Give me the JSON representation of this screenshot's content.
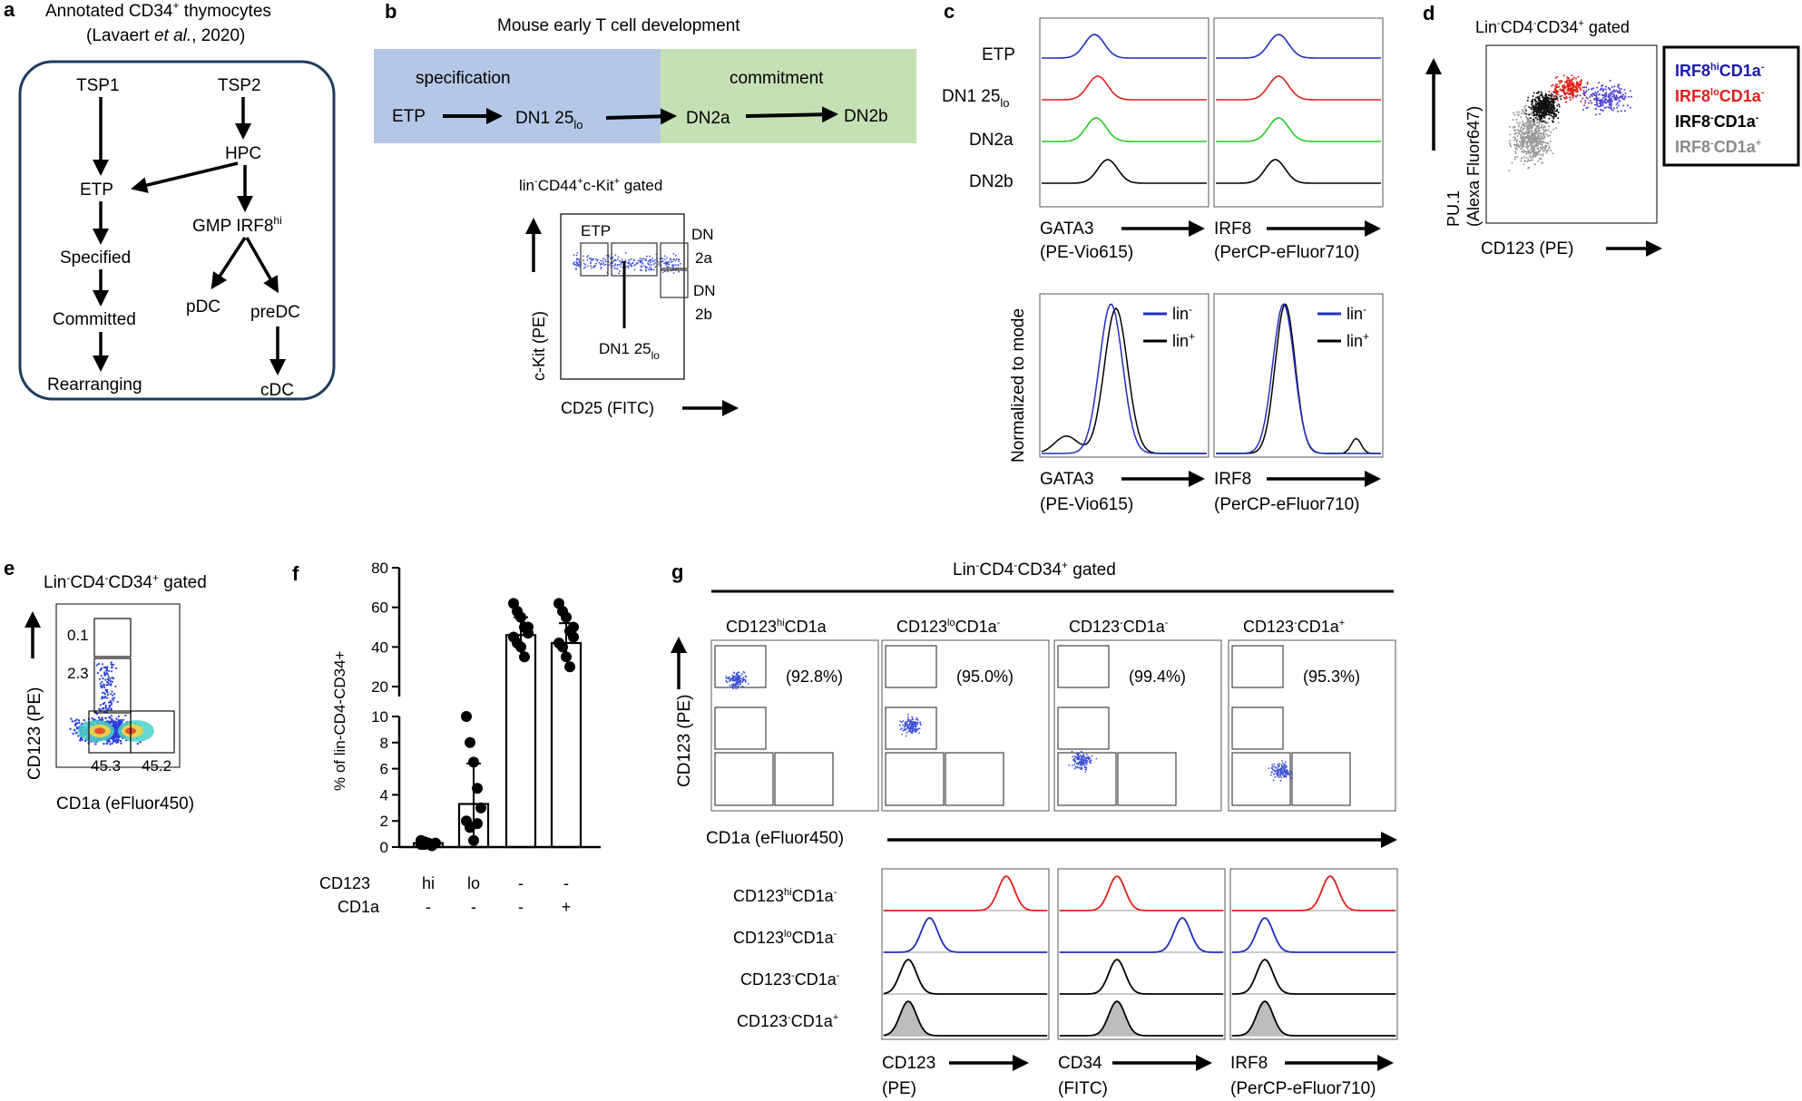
{
  "panel_labels": {
    "a": "a",
    "b": "b",
    "c": "c",
    "d": "d",
    "e": "e",
    "f": "f",
    "g": "g"
  },
  "panel_a": {
    "title_line1": "Annotated  CD34",
    "title_sup": "+",
    "title_line1_end": " thymocytes",
    "citation_pre": "(Lavaert ",
    "citation_italic": "et al.",
    "citation_post": ", 2020)",
    "nodes": {
      "tsp1": "TSP1",
      "tsp2": "TSP2",
      "hpc": "HPC",
      "etp": "ETP",
      "gmp": "GMP IRF8",
      "gmp_sup": "hi",
      "specified": "Specified",
      "committed": "Committed",
      "rearranging": "Rearranging",
      "pdc": "pDC",
      "predc": "preDC",
      "cdc": "cDC"
    }
  },
  "panel_b": {
    "title": "Mouse early T cell development",
    "spec_label": "specification",
    "commit_label": "commitment",
    "stage_etp": "ETP",
    "stage_dn1": "DN1 25",
    "stage_dn1_sub": "lo",
    "stage_dn2a": "DN2a",
    "stage_dn2b": "DN2b",
    "gate_pre": "lin",
    "gate_sup1": "-",
    "gate_mid": "CD44",
    "gate_sup2": "+",
    "gate_mid2": "c-Kit",
    "gate_sup3": "+",
    "gate_post": " gated",
    "gate_etp": "ETP",
    "gate_dn": "DN",
    "gate_2a": "2a",
    "gate_dn2": "DN",
    "gate_2b": "2b",
    "gate_dn1": "DN1 25",
    "gate_dn1_sub": "lo",
    "yaxis": "c-Kit (PE)",
    "xaxis": "CD25 (FITC)"
  },
  "panel_c": {
    "rows": [
      "ETP",
      "DN1 25",
      "DN2a",
      "DN2b"
    ],
    "row_sub": "lo",
    "colors": [
      "#1f2fbf",
      "#e0201b",
      "#22cc22",
      "#000000"
    ],
    "x_gata3": "GATA3",
    "x_gata3_sub": "(PE-Vio615)",
    "x_irf8": "IRF8",
    "x_irf8_sub": "(PerCP-eFluor710)",
    "ylabel": "Normalized to mode",
    "legend_lin_neg": "lin",
    "legend_lin_pos": "lin",
    "sup_neg": "-",
    "sup_pos": "+"
  },
  "panel_d": {
    "gate_a": "Lin",
    "gate_b": "CD4",
    "gate_c": "CD34",
    "gate_end": " gated",
    "ylabel1": "PU.1",
    "ylabel2": "(Alexa Fluor647)",
    "xlabel": "CD123 (PE)",
    "legend": [
      {
        "pre": "IRF8",
        "sup": "hi",
        "post": "CD1a",
        "sup2": "-",
        "color": "#1a1aa8"
      },
      {
        "pre": "IRF8",
        "sup": "lo",
        "post": "CD1a",
        "sup2": "-",
        "color": "#e0201b"
      },
      {
        "pre": "IRF8",
        "sup": "-",
        "post": "CD1a",
        "sup2": "-",
        "color": "#000000"
      },
      {
        "pre": "IRF8",
        "sup": "-",
        "post": "CD1a",
        "sup2": "+",
        "color": "#8a8a8a"
      }
    ]
  },
  "panel_e": {
    "gate_a": "Lin",
    "gate_b": "CD4",
    "gate_c": "CD34",
    "gate_end": " gated",
    "ylabel": "CD123 (PE)",
    "xlabel": "CD1a (eFluor450)",
    "v1": "0.1",
    "v2": "2.3",
    "v3": "45.3",
    "v4": "45.2"
  },
  "chart_data": {
    "type": "bar",
    "title": "",
    "ylabel": "% of lin-CD4-CD34+",
    "categories": [
      "hi/-",
      "lo/-",
      "-/-",
      "-/+"
    ],
    "cd123_labels": [
      "hi",
      "lo",
      "-",
      "-"
    ],
    "cd1a_labels": [
      "-",
      "-",
      "-",
      "+"
    ],
    "row_label_cd123": "CD123",
    "row_label_cd1a": "CD1a",
    "values": [
      0.3,
      3.3,
      46,
      42
    ],
    "error_upper": [
      0.5,
      6.4,
      55,
      52
    ],
    "error_lower": [
      0.1,
      0.3,
      37,
      33
    ],
    "points": [
      [
        0.2,
        0.4,
        0.3,
        0.1,
        0.3,
        0.5,
        0.2
      ],
      [
        10,
        8,
        6.5,
        4.5,
        3,
        2,
        1.5,
        0.5,
        1.8
      ],
      [
        62,
        58,
        55,
        50,
        47,
        45,
        42,
        40,
        35,
        50
      ],
      [
        62,
        58,
        55,
        48,
        45,
        42,
        40,
        35,
        30,
        50
      ]
    ],
    "y_ticks_low": [
      0,
      2,
      4,
      6,
      8,
      10
    ],
    "y_ticks_high": [
      20,
      40,
      60,
      80
    ],
    "ylim_low": [
      0,
      10
    ],
    "ylim_high": [
      15,
      80
    ],
    "axis_break": true
  },
  "panel_g": {
    "gate_a": "Lin",
    "gate_b": "CD4",
    "gate_c": "CD34",
    "gate_end": " gated",
    "columns": [
      {
        "pre": "CD123",
        "sup": "hi",
        "post": "CD1a",
        "sup2": "",
        "pct": "(92.8%)",
        "under": "-"
      },
      {
        "pre": "CD123",
        "sup": "lo",
        "post": "CD1a",
        "sup2": "-",
        "pct": "(95.0%)",
        "under": ""
      },
      {
        "pre": "CD123",
        "sup": "-",
        "post": "CD1a",
        "sup2": "-",
        "pct": "(99.4%)",
        "under": ""
      },
      {
        "pre": "CD123",
        "sup": "-",
        "post": "CD1a",
        "sup2": "+",
        "pct": "(95.3%)",
        "under": ""
      }
    ],
    "ylabel": "CD123 (PE)",
    "xlabel": "CD1a (eFluor450)",
    "hist_rows": [
      {
        "pre": "CD123",
        "sup": "hi",
        "post": "CD1a",
        "sup2": "-"
      },
      {
        "pre": "CD123",
        "sup": "lo",
        "post": "CD1a",
        "sup2": "-"
      },
      {
        "pre": "CD123",
        "sup": "-",
        "post": "CD1a",
        "sup2": "-"
      },
      {
        "pre": "CD123",
        "sup": "-",
        "post": "CD1a",
        "sup2": "+"
      }
    ],
    "hist_x1": "CD123",
    "hist_x1_sub": "(PE)",
    "hist_x2": "CD34",
    "hist_x2_sub": "(FITC)",
    "hist_x3": "IRF8",
    "hist_x3_sub": "(PerCP-eFluor710)"
  }
}
